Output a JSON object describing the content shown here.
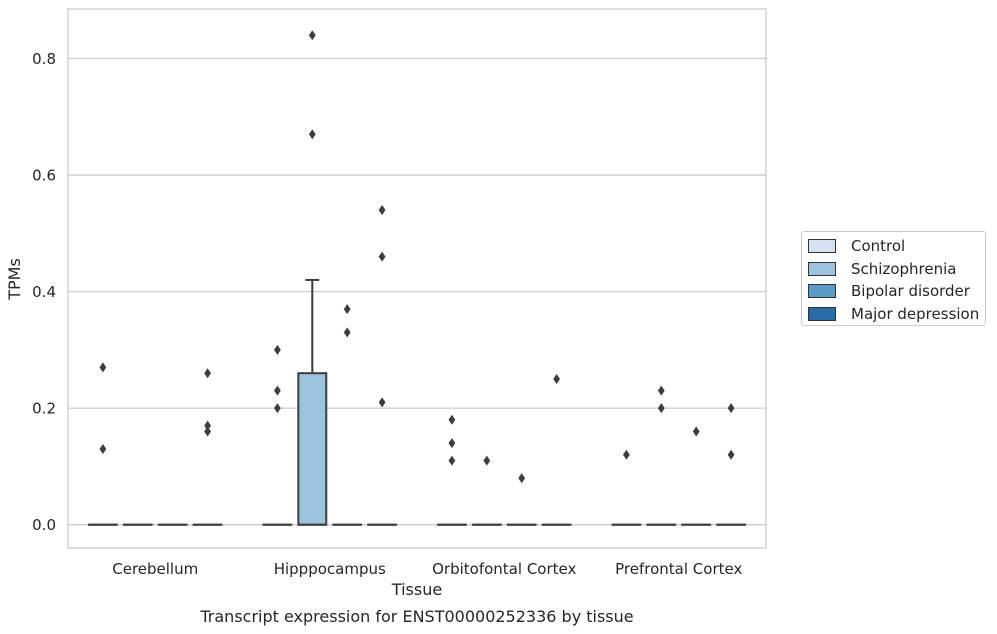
{
  "chart_data": {
    "type": "box",
    "title": "Transcript expression for ENST00000252336 by tissue",
    "xlabel": "Tissue",
    "ylabel": "TPMs",
    "ylim": [
      -0.04,
      0.885
    ],
    "yticks": [
      0.0,
      0.2,
      0.4,
      0.6,
      0.8
    ],
    "ytick_labels": [
      "0.0",
      "0.2",
      "0.4",
      "0.6",
      "0.8"
    ],
    "grid": "horizontal",
    "legend_position": "right",
    "categories": [
      "Cerebellum",
      "Hipppocampus",
      "Orbitofontal Cortex",
      "Prefrontal Cortex"
    ],
    "series": [
      {
        "name": "Control",
        "color": "#d4e2f1",
        "boxes": [
          {
            "category": "Cerebellum",
            "q1": 0,
            "median": 0,
            "q3": 0,
            "whisker_low": 0,
            "whisker_high": 0,
            "outliers": [
              0.27,
              0.13
            ]
          },
          {
            "category": "Hipppocampus",
            "q1": 0,
            "median": 0,
            "q3": 0,
            "whisker_low": 0,
            "whisker_high": 0,
            "outliers": [
              0.3,
              0.23,
              0.2
            ]
          },
          {
            "category": "Orbitofontal Cortex",
            "q1": 0,
            "median": 0,
            "q3": 0,
            "whisker_low": 0,
            "whisker_high": 0,
            "outliers": [
              0.18,
              0.14,
              0.11
            ]
          },
          {
            "category": "Prefrontal Cortex",
            "q1": 0,
            "median": 0,
            "q3": 0,
            "whisker_low": 0,
            "whisker_high": 0,
            "outliers": [
              0.12
            ]
          }
        ]
      },
      {
        "name": "Schizophrenia",
        "color": "#9dc3de",
        "boxes": [
          {
            "category": "Cerebellum",
            "q1": 0,
            "median": 0,
            "q3": 0,
            "whisker_low": 0,
            "whisker_high": 0,
            "outliers": []
          },
          {
            "category": "Hipppocampus",
            "q1": 0,
            "median": 0,
            "q3": 0.26,
            "whisker_low": 0,
            "whisker_high": 0.42,
            "outliers": [
              0.84,
              0.67
            ]
          },
          {
            "category": "Orbitofontal Cortex",
            "q1": 0,
            "median": 0,
            "q3": 0,
            "whisker_low": 0,
            "whisker_high": 0,
            "outliers": [
              0.11
            ]
          },
          {
            "category": "Prefrontal Cortex",
            "q1": 0,
            "median": 0,
            "q3": 0,
            "whisker_low": 0,
            "whisker_high": 0,
            "outliers": [
              0.23,
              0.2
            ]
          }
        ]
      },
      {
        "name": "Bipolar disorder",
        "color": "#5a9ac7",
        "boxes": [
          {
            "category": "Cerebellum",
            "q1": 0,
            "median": 0,
            "q3": 0,
            "whisker_low": 0,
            "whisker_high": 0,
            "outliers": []
          },
          {
            "category": "Hipppocampus",
            "q1": 0,
            "median": 0,
            "q3": 0,
            "whisker_low": 0,
            "whisker_high": 0,
            "outliers": [
              0.37,
              0.33
            ]
          },
          {
            "category": "Orbitofontal Cortex",
            "q1": 0,
            "median": 0,
            "q3": 0,
            "whisker_low": 0,
            "whisker_high": 0,
            "outliers": [
              0.08
            ]
          },
          {
            "category": "Prefrontal Cortex",
            "q1": 0,
            "median": 0,
            "q3": 0,
            "whisker_low": 0,
            "whisker_high": 0,
            "outliers": [
              0.16
            ]
          }
        ]
      },
      {
        "name": "Major depression",
        "color": "#2b6ca6",
        "boxes": [
          {
            "category": "Cerebellum",
            "q1": 0,
            "median": 0,
            "q3": 0,
            "whisker_low": 0,
            "whisker_high": 0,
            "outliers": [
              0.26,
              0.17,
              0.16
            ]
          },
          {
            "category": "Hipppocampus",
            "q1": 0,
            "median": 0,
            "q3": 0,
            "whisker_low": 0,
            "whisker_high": 0,
            "outliers": [
              0.54,
              0.46,
              0.21
            ]
          },
          {
            "category": "Orbitofontal Cortex",
            "q1": 0,
            "median": 0,
            "q3": 0,
            "whisker_low": 0,
            "whisker_high": 0,
            "outliers": [
              0.25
            ]
          },
          {
            "category": "Prefrontal Cortex",
            "q1": 0,
            "median": 0,
            "q3": 0,
            "whisker_low": 0,
            "whisker_high": 0,
            "outliers": [
              0.2,
              0.12
            ]
          }
        ]
      }
    ]
  }
}
